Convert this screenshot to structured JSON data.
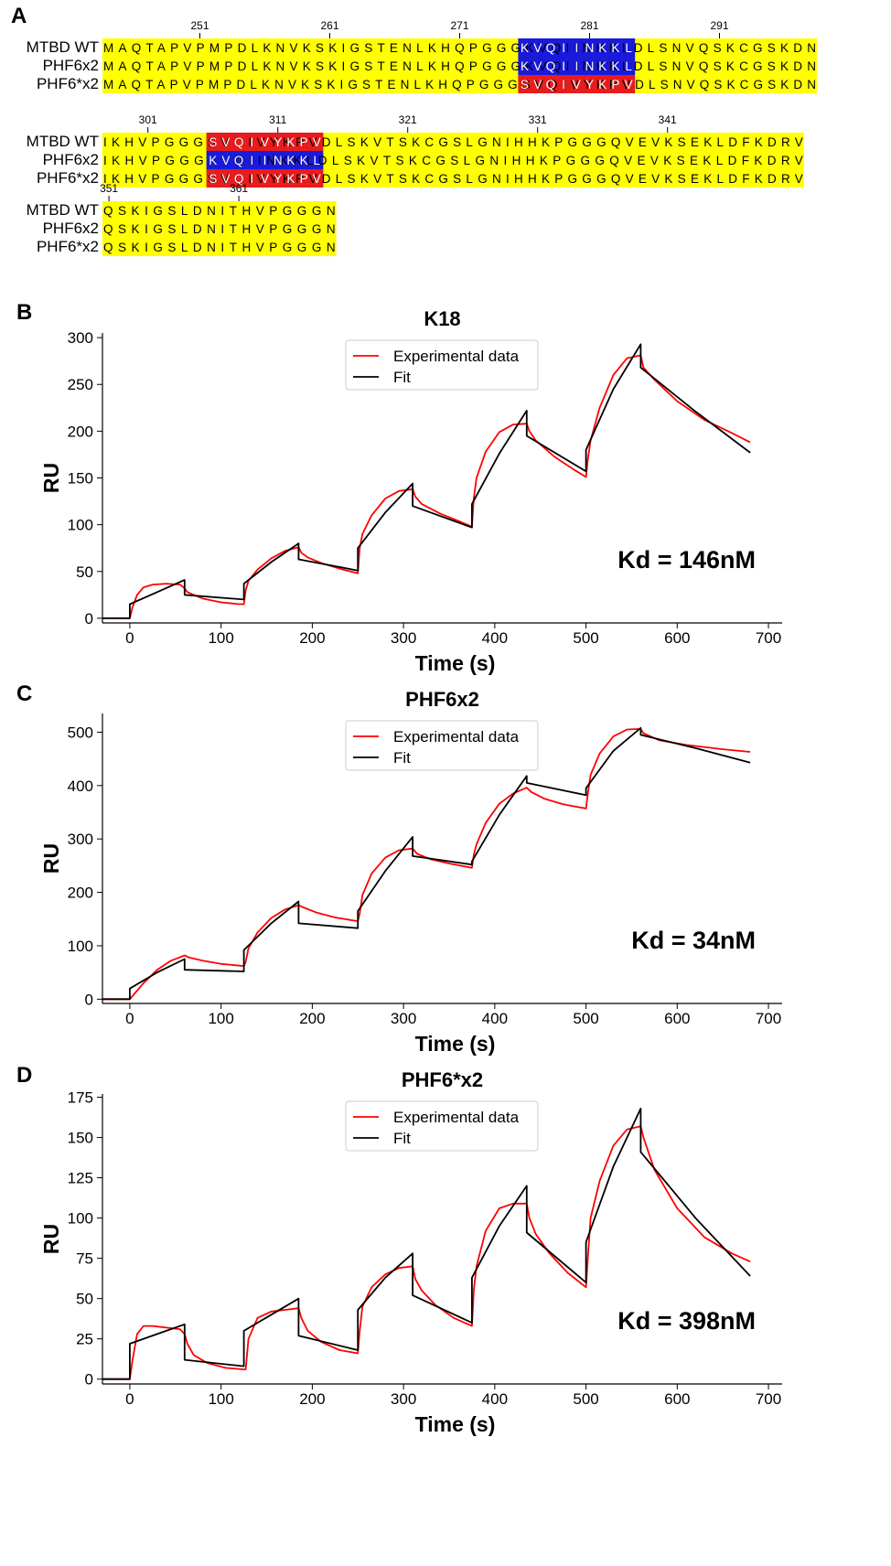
{
  "panels": {
    "a": "A",
    "b": "B",
    "c": "C",
    "d": "D"
  },
  "alignment": {
    "blocks": [
      {
        "start": 244,
        "tick_labels": [
          "251",
          "261",
          "271",
          "281",
          "291"
        ],
        "rows": [
          {
            "name": "MTBD WT",
            "seq": "MAQTAPVPMPDLKNVKSKIGSTENLKHQPGGGKVQIINKKLDLSNVQSKCGSKDN"
          },
          {
            "name": "PHF6x2",
            "seq": "MAQTAPVPMPDLKNVKSKIGSTENLKHQPGGGKVQIINKKLDLSNVQSKCGSKDN"
          },
          {
            "name": "PHF6*x2",
            "seq": "MAQTAPVPMPDLKNVKSKIGSTENLKHQPGGGSVQIVYKPVDLSNVQSKCGSKDN"
          }
        ],
        "highlights": [
          {
            "row": 0,
            "from": 32,
            "to": 40,
            "color": "#1a1adb"
          },
          {
            "row": 1,
            "from": 32,
            "to": 40,
            "color": "#1a1adb"
          },
          {
            "row": 2,
            "from": 32,
            "to": 40,
            "color": "#e81c1c"
          }
        ]
      },
      {
        "start": 298,
        "tick_labels": [
          "301",
          "311",
          "321",
          "331",
          "341"
        ],
        "rows": [
          {
            "name": "MTBD WT",
            "seq": "IKHVPGGGSVQIVYKPVDLSKVTSKCGSLGNIHHKPGGGQVEVKSEKLDFKDRV"
          },
          {
            "name": "PHF6x2",
            "seq": "IKHVPGGGKVQIINKKLDLSKVTSKCGSLGNIHHKPGGGQVEVKSEKLDFKDRV"
          },
          {
            "name": "PHF6*x2",
            "seq": "IKHVPGGGSVQIVYKPVDLSKVTSKCGSLGNIHHKPGGGQVEVKSEKLDFKDRV"
          }
        ],
        "highlights": [
          {
            "row": 0,
            "from": 8,
            "to": 16,
            "color": "#e81c1c"
          },
          {
            "row": 1,
            "from": 8,
            "to": 16,
            "color": "#1a1adb"
          },
          {
            "row": 2,
            "from": 8,
            "to": 16,
            "color": "#e81c1c"
          }
        ]
      },
      {
        "start": 351,
        "tick_labels": [
          "351",
          "361"
        ],
        "rows": [
          {
            "name": "MTBD WT",
            "seq": "QSKIGSLDNITHVPGGGN"
          },
          {
            "name": "PHF6x2",
            "seq": "QSKIGSLDNITHVPGGGN"
          },
          {
            "name": "PHF6*x2",
            "seq": "QSKIGSLDNITHVPGGGN"
          }
        ],
        "highlights": []
      }
    ]
  },
  "colors": {
    "sequence_bg": "#ffff00",
    "experimental": "#ff0000",
    "fit": "#000000"
  },
  "chart_data": [
    {
      "type": "line",
      "title": "K18",
      "xlabel": "Time (s)",
      "ylabel": "RU",
      "annotation": "Kd = 146nM",
      "xlim": [
        -30,
        715
      ],
      "ylim": [
        -5,
        305
      ],
      "xticks": [
        0,
        100,
        200,
        300,
        400,
        500,
        600,
        700
      ],
      "yticks": [
        0,
        50,
        100,
        150,
        200,
        250,
        300
      ],
      "legend": {
        "position": "top-center",
        "entries": [
          "Experimental data",
          "Fit"
        ]
      },
      "series": [
        {
          "name": "Experimental data",
          "color": "#ff0000",
          "x": [
            -30,
            0,
            3,
            8,
            15,
            25,
            40,
            55,
            60,
            63,
            70,
            80,
            100,
            120,
            125,
            127,
            130,
            140,
            155,
            170,
            185,
            188,
            195,
            210,
            230,
            250,
            252,
            255,
            265,
            280,
            295,
            310,
            313,
            320,
            340,
            360,
            375,
            377,
            380,
            390,
            405,
            420,
            435,
            438,
            445,
            465,
            485,
            500,
            502,
            505,
            515,
            530,
            545,
            560,
            563,
            575,
            600,
            630,
            660,
            680
          ],
          "y": [
            0,
            0,
            12,
            25,
            33,
            36,
            37,
            36,
            32,
            28,
            25,
            21,
            17,
            15,
            15,
            30,
            40,
            52,
            64,
            72,
            76,
            70,
            65,
            59,
            53,
            48,
            75,
            90,
            110,
            128,
            136,
            138,
            130,
            122,
            112,
            104,
            98,
            128,
            150,
            178,
            199,
            207,
            208,
            200,
            190,
            173,
            160,
            151,
            170,
            190,
            225,
            260,
            278,
            281,
            268,
            255,
            232,
            212,
            198,
            188
          ]
        },
        {
          "name": "Fit",
          "color": "#000000",
          "x": [
            -30,
            0,
            0,
            30,
            60,
            60,
            125,
            125,
            155,
            185,
            185,
            250,
            250,
            280,
            310,
            310,
            375,
            375,
            405,
            435,
            435,
            500,
            500,
            530,
            560,
            560,
            620,
            680
          ],
          "y": [
            0,
            0,
            15,
            28,
            41,
            25,
            20,
            37,
            60,
            80,
            63,
            51,
            75,
            113,
            144,
            120,
            97,
            122,
            176,
            222,
            195,
            157,
            180,
            245,
            293,
            268,
            221,
            177
          ]
        }
      ]
    },
    {
      "type": "line",
      "title": "PHF6x2",
      "xlabel": "Time (s)",
      "ylabel": "RU",
      "annotation": "Kd = 34nM",
      "xlim": [
        -30,
        715
      ],
      "ylim": [
        -8,
        535
      ],
      "xticks": [
        0,
        100,
        200,
        300,
        400,
        500,
        600,
        700
      ],
      "yticks": [
        0,
        100,
        200,
        300,
        400,
        500
      ],
      "legend": {
        "position": "top-center",
        "entries": [
          "Experimental data",
          "Fit"
        ]
      },
      "series": [
        {
          "name": "Experimental data",
          "color": "#ff0000",
          "x": [
            -30,
            0,
            5,
            15,
            30,
            45,
            60,
            65,
            80,
            100,
            125,
            127,
            130,
            140,
            155,
            170,
            185,
            190,
            205,
            225,
            250,
            252,
            255,
            265,
            280,
            295,
            310,
            315,
            330,
            350,
            375,
            377,
            380,
            390,
            405,
            420,
            435,
            440,
            455,
            475,
            500,
            502,
            505,
            515,
            530,
            545,
            560,
            563,
            580,
            610,
            650,
            680
          ],
          "y": [
            0,
            0,
            10,
            30,
            55,
            72,
            82,
            78,
            72,
            66,
            62,
            70,
            95,
            125,
            152,
            168,
            176,
            172,
            162,
            153,
            146,
            160,
            195,
            235,
            265,
            279,
            282,
            272,
            262,
            254,
            246,
            270,
            290,
            330,
            366,
            385,
            396,
            388,
            375,
            365,
            357,
            385,
            420,
            460,
            492,
            505,
            506,
            498,
            485,
            476,
            468,
            463
          ]
        },
        {
          "name": "Fit",
          "color": "#000000",
          "x": [
            -30,
            0,
            0,
            30,
            60,
            60,
            125,
            125,
            155,
            185,
            185,
            250,
            250,
            280,
            310,
            310,
            375,
            375,
            405,
            435,
            435,
            500,
            500,
            530,
            560,
            560,
            620,
            680
          ],
          "y": [
            0,
            0,
            20,
            50,
            75,
            55,
            52,
            92,
            142,
            183,
            142,
            133,
            165,
            240,
            304,
            268,
            252,
            258,
            345,
            418,
            405,
            382,
            395,
            465,
            508,
            495,
            470,
            443
          ]
        }
      ]
    },
    {
      "type": "line",
      "title": "PHF6*x2",
      "xlabel": "Time (s)",
      "ylabel": "RU",
      "annotation": "Kd = 398nM",
      "xlim": [
        -30,
        715
      ],
      "ylim": [
        -3,
        177
      ],
      "xticks": [
        0,
        100,
        200,
        300,
        400,
        500,
        600,
        700
      ],
      "yticks": [
        0,
        25,
        50,
        75,
        100,
        125,
        150,
        175
      ],
      "legend": {
        "position": "top-center",
        "entries": [
          "Experimental data",
          "Fit"
        ]
      },
      "series": [
        {
          "name": "Experimental data",
          "color": "#ff0000",
          "x": [
            -30,
            0,
            3,
            8,
            15,
            25,
            40,
            55,
            60,
            63,
            70,
            85,
            105,
            125,
            127,
            130,
            140,
            155,
            170,
            185,
            188,
            195,
            210,
            230,
            250,
            252,
            255,
            265,
            280,
            295,
            310,
            313,
            320,
            335,
            355,
            375,
            377,
            380,
            390,
            405,
            420,
            435,
            438,
            445,
            460,
            480,
            500,
            502,
            505,
            515,
            530,
            545,
            560,
            563,
            575,
            600,
            630,
            660,
            680
          ],
          "y": [
            0,
            0,
            12,
            28,
            33,
            33,
            32,
            31,
            28,
            22,
            15,
            10,
            7,
            6,
            6,
            25,
            38,
            42,
            43,
            44,
            38,
            30,
            23,
            18,
            16,
            30,
            45,
            57,
            65,
            69,
            70,
            62,
            55,
            46,
            38,
            33,
            55,
            70,
            92,
            106,
            109,
            109,
            100,
            90,
            78,
            66,
            57,
            75,
            100,
            123,
            145,
            155,
            157,
            150,
            130,
            106,
            88,
            78,
            73
          ]
        },
        {
          "name": "Fit",
          "color": "#000000",
          "x": [
            -30,
            0,
            0,
            30,
            60,
            60,
            125,
            125,
            155,
            185,
            185,
            250,
            250,
            280,
            310,
            310,
            375,
            375,
            405,
            435,
            435,
            500,
            500,
            530,
            560,
            560,
            620,
            680
          ],
          "y": [
            0,
            0,
            22,
            28,
            34,
            12,
            8,
            30,
            40,
            50,
            27,
            18,
            43,
            63,
            78,
            52,
            35,
            63,
            95,
            120,
            91,
            60,
            85,
            132,
            168,
            141,
            100,
            64
          ]
        }
      ]
    }
  ]
}
